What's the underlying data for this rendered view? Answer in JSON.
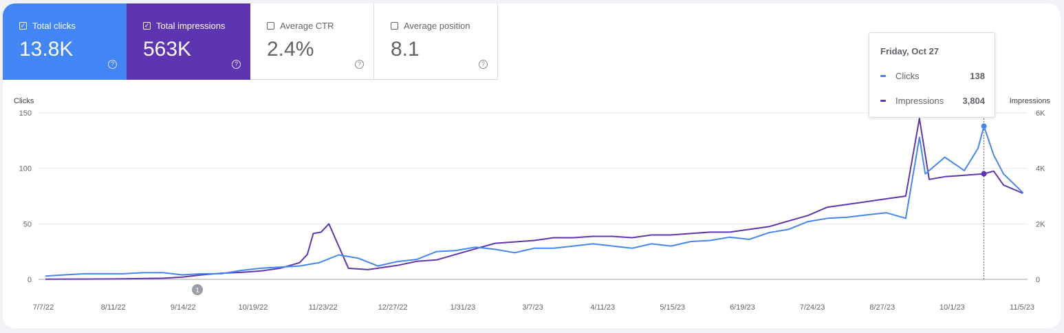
{
  "metrics": [
    {
      "label": "Total clicks",
      "value": "13.8K",
      "checked": true
    },
    {
      "label": "Total impressions",
      "value": "563K",
      "checked": true
    },
    {
      "label": "Average CTR",
      "value": "2.4%",
      "checked": false
    },
    {
      "label": "Average position",
      "value": "8.1",
      "checked": false
    }
  ],
  "tooltip": {
    "date": "Friday, Oct 27",
    "rows": [
      {
        "label": "Clicks",
        "value": "138"
      },
      {
        "label": "Impressions",
        "value": "3,804"
      }
    ]
  },
  "annotation_label": "1",
  "colors": {
    "clicks": "#4285f4",
    "impressions": "#5e35b1",
    "grid": "#e8eaed",
    "axis": "#9aa0a6"
  },
  "chart_data": {
    "type": "line",
    "x_tick_labels": [
      "7/7/22",
      "8/11/22",
      "9/14/22",
      "10/19/22",
      "11/23/22",
      "12/27/22",
      "1/31/23",
      "3/7/23",
      "4/11/23",
      "5/15/23",
      "6/19/23",
      "7/24/23",
      "8/27/23",
      "10/1/23",
      "11/5/23"
    ],
    "y_left": {
      "title": "Clicks",
      "ticks": [
        "150",
        "100",
        "50",
        "0"
      ],
      "range": [
        0,
        150
      ]
    },
    "y_right": {
      "title": "Impressions",
      "ticks": [
        "6K",
        "4K",
        "2K",
        "0"
      ],
      "range": [
        0,
        6000
      ]
    },
    "x_range": [
      0,
      490
    ],
    "grid": true,
    "series": [
      {
        "name": "Clicks",
        "axis": "left",
        "color": "#4285f4",
        "points": [
          [
            0,
            3
          ],
          [
            10,
            4
          ],
          [
            20,
            5
          ],
          [
            30,
            5
          ],
          [
            40,
            5
          ],
          [
            50,
            6
          ],
          [
            60,
            6
          ],
          [
            70,
            4
          ],
          [
            80,
            5
          ],
          [
            90,
            5
          ],
          [
            100,
            8
          ],
          [
            110,
            10
          ],
          [
            120,
            11
          ],
          [
            130,
            12
          ],
          [
            140,
            15
          ],
          [
            150,
            22
          ],
          [
            160,
            19
          ],
          [
            170,
            12
          ],
          [
            180,
            16
          ],
          [
            190,
            18
          ],
          [
            200,
            25
          ],
          [
            210,
            26
          ],
          [
            220,
            29
          ],
          [
            230,
            27
          ],
          [
            240,
            24
          ],
          [
            250,
            28
          ],
          [
            260,
            28
          ],
          [
            270,
            30
          ],
          [
            280,
            32
          ],
          [
            290,
            30
          ],
          [
            300,
            28
          ],
          [
            310,
            32
          ],
          [
            320,
            30
          ],
          [
            330,
            34
          ],
          [
            340,
            35
          ],
          [
            350,
            38
          ],
          [
            360,
            36
          ],
          [
            370,
            42
          ],
          [
            380,
            45
          ],
          [
            390,
            52
          ],
          [
            400,
            55
          ],
          [
            410,
            56
          ],
          [
            420,
            58
          ],
          [
            430,
            60
          ],
          [
            440,
            55
          ],
          [
            447,
            128
          ],
          [
            450,
            95
          ],
          [
            460,
            110
          ],
          [
            470,
            98
          ],
          [
            477,
            118
          ],
          [
            480,
            138
          ],
          [
            485,
            112
          ],
          [
            490,
            95
          ],
          [
            500,
            78
          ]
        ]
      },
      {
        "name": "Impressions",
        "axis": "right",
        "color": "#5e35b1",
        "points": [
          [
            0,
            5
          ],
          [
            20,
            10
          ],
          [
            40,
            20
          ],
          [
            60,
            40
          ],
          [
            70,
            80
          ],
          [
            80,
            160
          ],
          [
            90,
            220
          ],
          [
            100,
            250
          ],
          [
            110,
            300
          ],
          [
            120,
            400
          ],
          [
            130,
            600
          ],
          [
            134,
            900
          ],
          [
            137,
            1650
          ],
          [
            141,
            1700
          ],
          [
            145,
            2000
          ],
          [
            150,
            1200
          ],
          [
            155,
            400
          ],
          [
            165,
            350
          ],
          [
            180,
            500
          ],
          [
            190,
            650
          ],
          [
            200,
            700
          ],
          [
            210,
            900
          ],
          [
            220,
            1100
          ],
          [
            230,
            1300
          ],
          [
            240,
            1350
          ],
          [
            250,
            1400
          ],
          [
            260,
            1500
          ],
          [
            270,
            1500
          ],
          [
            280,
            1550
          ],
          [
            290,
            1550
          ],
          [
            300,
            1500
          ],
          [
            310,
            1600
          ],
          [
            320,
            1600
          ],
          [
            330,
            1650
          ],
          [
            340,
            1700
          ],
          [
            350,
            1700
          ],
          [
            360,
            1800
          ],
          [
            370,
            1900
          ],
          [
            380,
            2100
          ],
          [
            390,
            2300
          ],
          [
            400,
            2600
          ],
          [
            410,
            2700
          ],
          [
            420,
            2800
          ],
          [
            430,
            2900
          ],
          [
            440,
            3000
          ],
          [
            447,
            5800
          ],
          [
            452,
            3600
          ],
          [
            460,
            3700
          ],
          [
            470,
            3750
          ],
          [
            480,
            3804
          ],
          [
            485,
            3900
          ],
          [
            490,
            3400
          ],
          [
            500,
            3100
          ]
        ]
      }
    ],
    "highlight": {
      "x": 480,
      "clicks": 138,
      "impressions": 3804
    },
    "annotation": {
      "x": 70
    }
  }
}
